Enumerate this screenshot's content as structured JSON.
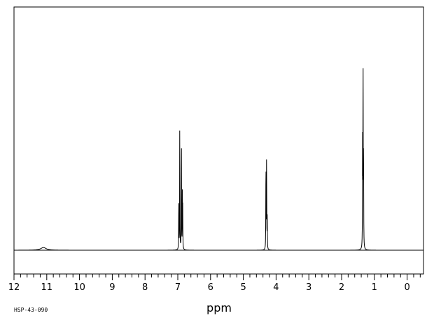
{
  "chart_data": {
    "type": "line",
    "xlabel": "ppm",
    "sample_id": "HSP-43-090",
    "x_reversed": true,
    "xlim": [
      12,
      -0.5
    ],
    "ylim": [
      0,
      1.0
    ],
    "ticks": [
      "12",
      "11",
      "10",
      "9",
      "8",
      "7",
      "6",
      "5",
      "4",
      "3",
      "2",
      "1",
      "0"
    ],
    "tick_values": [
      12,
      11,
      10,
      9,
      8,
      7,
      6,
      5,
      4,
      3,
      2,
      1,
      0
    ],
    "minor_step": 0.2,
    "grid": false,
    "peaks": [
      {
        "ppm": 11.1,
        "height": 0.012,
        "width": 0.1
      },
      {
        "ppm": 6.97,
        "height": 0.25,
        "width": 0.004
      },
      {
        "ppm": 6.94,
        "height": 0.58,
        "width": 0.004
      },
      {
        "ppm": 6.89,
        "height": 0.58,
        "width": 0.004
      },
      {
        "ppm": 6.86,
        "height": 0.26,
        "width": 0.004
      },
      {
        "ppm": 6.85,
        "height": 0.17,
        "width": 0.004
      },
      {
        "ppm": 4.31,
        "height": 0.44,
        "width": 0.004
      },
      {
        "ppm": 4.29,
        "height": 0.45,
        "width": 0.004
      },
      {
        "ppm": 4.27,
        "height": 0.14,
        "width": 0.004
      },
      {
        "ppm": 1.36,
        "height": 0.48,
        "width": 0.004
      },
      {
        "ppm": 1.345,
        "height": 0.95,
        "width": 0.004
      },
      {
        "ppm": 1.33,
        "height": 0.48,
        "width": 0.004
      }
    ]
  }
}
